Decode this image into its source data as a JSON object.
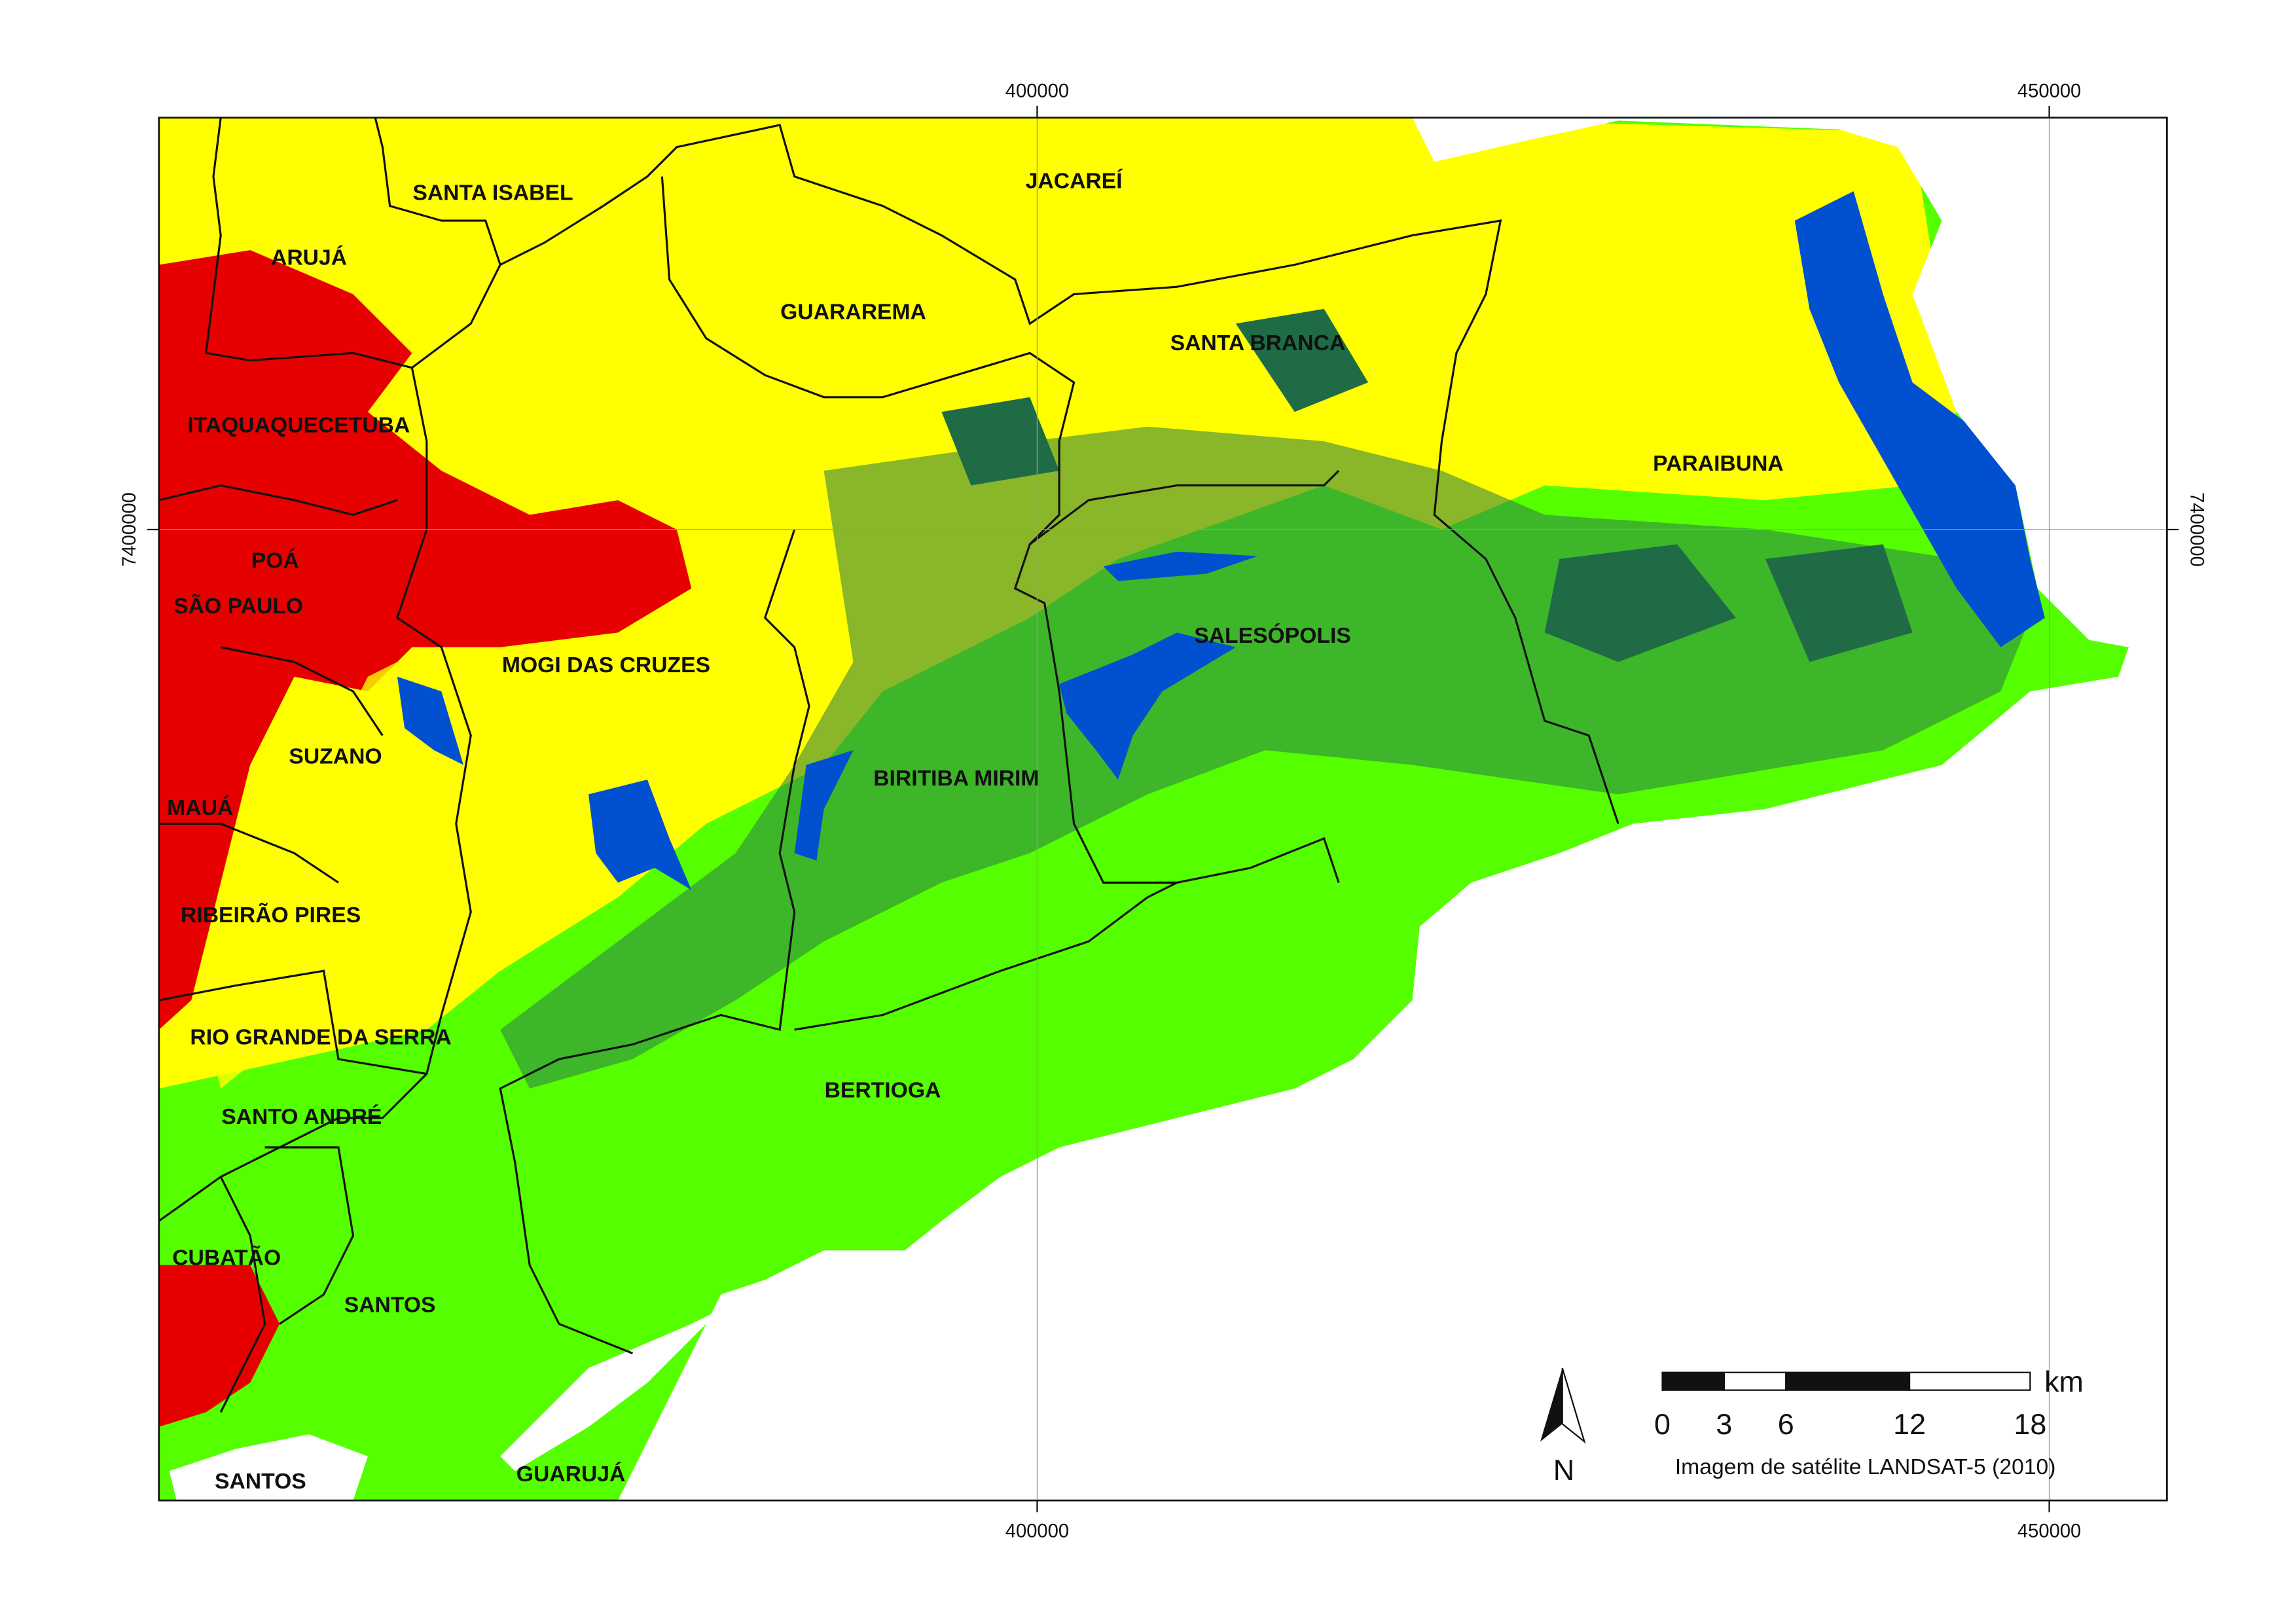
{
  "map": {
    "municipalities": [
      "SANTA ISABEL",
      "ARUJÁ",
      "JACAREÍ",
      "GUARAREMA",
      "SANTA BRANCA",
      "ITAQUAQUECETUBA",
      "PARAIBUNA",
      "POÁ",
      "SÃO PAULO",
      "SALESÓPOLIS",
      "MOGI DAS CRUZES",
      "SUZANO",
      "BIRITIBA MIRIM",
      "MAUÁ",
      "RIBEIRÃO PIRES",
      "RIO GRANDE DA SERRA",
      "BERTIOGA",
      "SANTO ANDRÉ",
      "CUBATÃO",
      "SANTOS",
      "SANTOS",
      "GUARUJÁ"
    ],
    "grid": {
      "eastings": [
        "400000",
        "450000"
      ],
      "northings": [
        "7400000"
      ]
    },
    "scale_bar": {
      "unit": "km",
      "labels": [
        "0",
        "3",
        "6",
        "12",
        "18"
      ]
    },
    "north": "N",
    "credit": "Imagem de satélite LANDSAT-5  (2010)"
  }
}
